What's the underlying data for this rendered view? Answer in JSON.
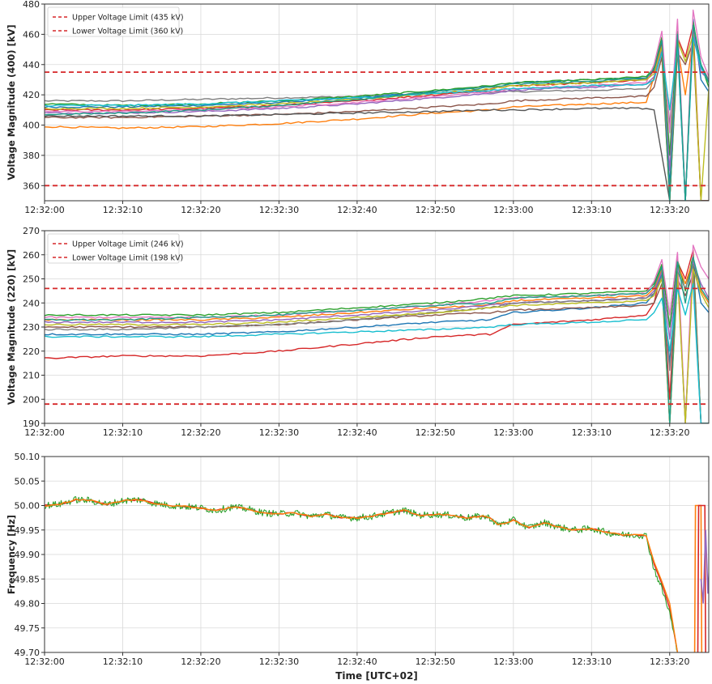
{
  "chart_data": [
    {
      "type": "line",
      "ylabel": "Voltage Magnitude (400) [kV]",
      "xlabel": "",
      "xlim": [
        "12:32:00",
        "12:33:25"
      ],
      "ylim": [
        350,
        480
      ],
      "yticks": [
        360,
        380,
        400,
        420,
        440,
        460,
        480
      ],
      "xticks": [
        "12:32:00",
        "12:32:10",
        "12:32:20",
        "12:32:30",
        "12:32:40",
        "12:32:50",
        "12:33:00",
        "12:33:10",
        "12:33:20"
      ],
      "grid": true,
      "legend_position": "top-left",
      "limits": [
        {
          "label": "Upper Voltage Limit (435 kV)",
          "value": 435,
          "color": "#d62728",
          "style": "dashed"
        },
        {
          "label": "Lower Voltage Limit (360 kV)",
          "value": 360,
          "color": "#d62728",
          "style": "dashed"
        }
      ],
      "x": [
        0,
        10,
        20,
        30,
        40,
        50,
        57,
        60,
        70,
        77,
        78,
        79,
        80,
        81,
        82,
        83,
        84,
        85
      ],
      "series": [
        {
          "color": "#7f7f7f",
          "values": [
            416,
            416,
            417,
            418,
            419,
            421,
            422,
            422,
            423,
            424,
            430,
            455,
            400,
            460,
            350,
            462,
            440,
            430
          ]
        },
        {
          "color": "#1f77b4",
          "values": [
            412,
            412,
            413,
            415,
            418,
            422,
            426,
            428,
            430,
            431,
            436,
            450,
            360,
            455,
            350,
            470,
            430,
            422
          ]
        },
        {
          "color": "#ff7f0e",
          "values": [
            399,
            398,
            399,
            401,
            404,
            408,
            410,
            412,
            414,
            415,
            432,
            448,
            350,
            452,
            420,
            458,
            350,
            350
          ]
        },
        {
          "color": "#2ca02c",
          "values": [
            414,
            413,
            414,
            416,
            419,
            423,
            426,
            428,
            430,
            432,
            438,
            458,
            380,
            462,
            350,
            468,
            440,
            425
          ]
        },
        {
          "color": "#d62728",
          "values": [
            410,
            410,
            411,
            413,
            416,
            420,
            424,
            426,
            428,
            430,
            436,
            455,
            350,
            458,
            445,
            466,
            350,
            350
          ]
        },
        {
          "color": "#9467bd",
          "values": [
            408,
            408,
            409,
            411,
            414,
            418,
            421,
            423,
            425,
            427,
            432,
            450,
            370,
            455,
            350,
            462,
            435,
            430
          ]
        },
        {
          "color": "#8c564b",
          "values": [
            405,
            405,
            406,
            407,
            409,
            412,
            414,
            416,
            418,
            419,
            425,
            445,
            350,
            448,
            440,
            455,
            350,
            350
          ]
        },
        {
          "color": "#e377c2",
          "values": [
            409,
            409,
            410,
            412,
            415,
            419,
            422,
            424,
            426,
            428,
            440,
            462,
            395,
            470,
            350,
            476,
            445,
            432
          ]
        },
        {
          "color": "#bcbd22",
          "values": [
            411,
            411,
            412,
            414,
            417,
            421,
            424,
            426,
            428,
            430,
            434,
            452,
            350,
            456,
            442,
            460,
            350,
            424
          ]
        },
        {
          "color": "#17becf",
          "values": [
            413,
            413,
            414,
            416,
            418,
            421,
            423,
            424,
            426,
            427,
            430,
            448,
            410,
            452,
            350,
            458,
            438,
            428
          ]
        },
        {
          "color": "#555555",
          "values": [
            406,
            406,
            406,
            407,
            408,
            409,
            410,
            410,
            411,
            411,
            410,
            380,
            350,
            350,
            350,
            350,
            350,
            350
          ]
        },
        {
          "color": "#1f9e89",
          "values": [
            407,
            408,
            410,
            413,
            417,
            422,
            425,
            427,
            429,
            431,
            437,
            456,
            350,
            460,
            350,
            466,
            440,
            428
          ]
        }
      ]
    },
    {
      "type": "line",
      "ylabel": "Voltage Magnitude (220) [kV]",
      "xlabel": "",
      "xlim": [
        "12:32:00",
        "12:33:25"
      ],
      "ylim": [
        190,
        270
      ],
      "yticks": [
        190,
        200,
        210,
        220,
        230,
        240,
        250,
        260,
        270
      ],
      "xticks": [
        "12:32:00",
        "12:32:10",
        "12:32:20",
        "12:32:30",
        "12:32:40",
        "12:32:50",
        "12:33:00",
        "12:33:10",
        "12:33:20"
      ],
      "grid": true,
      "legend_position": "top-left",
      "limits": [
        {
          "label": "Upper Voltage Limit (246 kV)",
          "value": 246,
          "color": "#d62728",
          "style": "dashed"
        },
        {
          "label": "Lower Voltage Limit (198 kV)",
          "value": 198,
          "color": "#d62728",
          "style": "dashed"
        }
      ],
      "x": [
        0,
        10,
        20,
        30,
        40,
        50,
        57,
        60,
        70,
        77,
        78,
        79,
        80,
        81,
        82,
        83,
        84,
        85
      ],
      "series": [
        {
          "color": "#d62728",
          "values": [
            217,
            218,
            218,
            220,
            223,
            226,
            227,
            231,
            233,
            235,
            240,
            254,
            200,
            257,
            250,
            262,
            190,
            190
          ]
        },
        {
          "color": "#1f77b4",
          "values": [
            227,
            227,
            227,
            228,
            230,
            232,
            233,
            236,
            238,
            240,
            244,
            252,
            215,
            255,
            190,
            258,
            240,
            236
          ]
        },
        {
          "color": "#2ca02c",
          "values": [
            235,
            235,
            235,
            236,
            238,
            240,
            242,
            243,
            244,
            245,
            248,
            256,
            230,
            258,
            245,
            260,
            190,
            190
          ]
        },
        {
          "color": "#ff7f0e",
          "values": [
            233,
            233,
            233,
            234,
            236,
            238,
            239,
            241,
            242,
            243,
            246,
            254,
            190,
            256,
            248,
            258,
            245,
            240
          ]
        },
        {
          "color": "#9467bd",
          "values": [
            232,
            232,
            232,
            233,
            235,
            237,
            239,
            240,
            241,
            242,
            245,
            253,
            225,
            255,
            190,
            257,
            248,
            242
          ]
        },
        {
          "color": "#8c564b",
          "values": [
            230,
            230,
            230,
            231,
            233,
            235,
            236,
            237,
            238,
            239,
            240,
            248,
            190,
            250,
            243,
            252,
            190,
            190
          ]
        },
        {
          "color": "#e377c2",
          "values": [
            234,
            234,
            234,
            235,
            237,
            239,
            241,
            242,
            243,
            244,
            249,
            258,
            235,
            261,
            190,
            264,
            255,
            250
          ]
        },
        {
          "color": "#7f7f7f",
          "values": [
            229,
            229,
            230,
            231,
            233,
            236,
            238,
            240,
            241,
            242,
            244,
            251,
            212,
            253,
            246,
            256,
            190,
            190
          ]
        },
        {
          "color": "#bcbd22",
          "values": [
            231,
            231,
            231,
            232,
            234,
            236,
            238,
            239,
            240,
            241,
            243,
            250,
            190,
            252,
            190,
            254,
            244,
            238
          ]
        },
        {
          "color": "#17becf",
          "values": [
            226,
            226,
            226,
            227,
            228,
            229,
            230,
            231,
            232,
            233,
            236,
            242,
            220,
            246,
            235,
            248,
            190,
            190
          ]
        },
        {
          "color": "#1f9e89",
          "values": [
            233,
            233,
            234,
            235,
            237,
            239,
            240,
            242,
            243,
            244,
            247,
            255,
            190,
            257,
            240,
            259,
            246,
            241
          ]
        }
      ]
    },
    {
      "type": "line",
      "ylabel": "Frequency [Hz]",
      "xlabel": "Time [UTC+02]",
      "xlim": [
        "12:32:00",
        "12:33:25"
      ],
      "ylim": [
        49.7,
        50.1
      ],
      "yticks": [
        49.7,
        49.75,
        49.8,
        49.85,
        49.9,
        49.95,
        50.0,
        50.05,
        50.1
      ],
      "xticks": [
        "12:32:00",
        "12:32:10",
        "12:32:20",
        "12:32:30",
        "12:32:40",
        "12:32:50",
        "12:33:00",
        "12:33:10",
        "12:33:20"
      ],
      "grid": true,
      "x": [
        0,
        2,
        4,
        6,
        8,
        10,
        12,
        14,
        16,
        18,
        20,
        22,
        24,
        26,
        28,
        30,
        32,
        34,
        36,
        38,
        40,
        42,
        44,
        46,
        48,
        50,
        52,
        54,
        56,
        57,
        58,
        60,
        62,
        64,
        66,
        68,
        70,
        72,
        74,
        76,
        77,
        78,
        79,
        80,
        81
      ],
      "series": [
        {
          "color": "#d62728",
          "values": [
            50.0,
            50.003,
            50.012,
            50.01,
            50.002,
            50.01,
            50.012,
            50.005,
            50.0,
            49.998,
            49.995,
            49.99,
            49.997,
            49.993,
            49.985,
            49.983,
            49.985,
            49.978,
            49.982,
            49.975,
            49.975,
            49.978,
            49.985,
            49.99,
            49.98,
            49.982,
            49.98,
            49.975,
            49.978,
            49.975,
            49.96,
            49.97,
            49.955,
            49.965,
            49.955,
            49.95,
            49.953,
            49.945,
            49.94,
            49.94,
            49.938,
            49.88,
            49.84,
            49.79,
            49.7
          ]
        },
        {
          "color": "#2ca02c",
          "noise": 0.007,
          "values": [
            50.0,
            50.003,
            50.012,
            50.01,
            50.002,
            50.01,
            50.012,
            50.005,
            50.0,
            49.998,
            49.995,
            49.99,
            49.997,
            49.993,
            49.985,
            49.983,
            49.985,
            49.978,
            49.982,
            49.975,
            49.975,
            49.978,
            49.985,
            49.99,
            49.98,
            49.982,
            49.98,
            49.975,
            49.978,
            49.975,
            49.96,
            49.97,
            49.955,
            49.965,
            49.955,
            49.95,
            49.953,
            49.945,
            49.94,
            49.94,
            49.938,
            49.87,
            49.83,
            49.78,
            49.7
          ]
        },
        {
          "color": "#ff7f0e",
          "values": [
            50.0,
            50.003,
            50.012,
            50.01,
            50.002,
            50.01,
            50.012,
            50.005,
            50.0,
            49.998,
            49.995,
            49.99,
            49.997,
            49.993,
            49.985,
            49.983,
            49.985,
            49.978,
            49.982,
            49.975,
            49.975,
            49.978,
            49.985,
            49.99,
            49.98,
            49.982,
            49.98,
            49.975,
            49.978,
            49.975,
            49.96,
            49.97,
            49.955,
            49.965,
            49.955,
            49.95,
            49.953,
            49.945,
            49.94,
            49.94,
            49.938,
            49.885,
            49.845,
            49.8,
            49.7
          ]
        }
      ],
      "tail_segments": [
        {
          "color": "#ff7f0e",
          "x": [
            83.2,
            83.3,
            83.4,
            84.0,
            84.1
          ],
          "values": [
            49.7,
            50.0,
            50.0,
            50.0,
            49.7
          ]
        },
        {
          "color": "#d62728",
          "x": [
            83.6,
            83.7,
            84.5,
            84.6
          ],
          "values": [
            49.7,
            50.0,
            50.0,
            49.7
          ]
        },
        {
          "color": "#9467bd",
          "x": [
            84.0,
            84.3,
            84.6,
            84.9,
            85.2,
            85.5,
            85.8,
            86.1
          ],
          "values": [
            49.85,
            49.8,
            49.95,
            49.82,
            49.92,
            49.83,
            49.9,
            49.86
          ]
        },
        {
          "color": "#7f7f7f",
          "x": [
            85.5,
            85.6,
            86.4,
            86.5
          ],
          "values": [
            49.7,
            50.0,
            50.0,
            49.7
          ]
        },
        {
          "color": "#17becf",
          "x": [
            85.8,
            85.9,
            86.6
          ],
          "values": [
            49.7,
            50.0,
            50.0
          ]
        }
      ]
    }
  ]
}
